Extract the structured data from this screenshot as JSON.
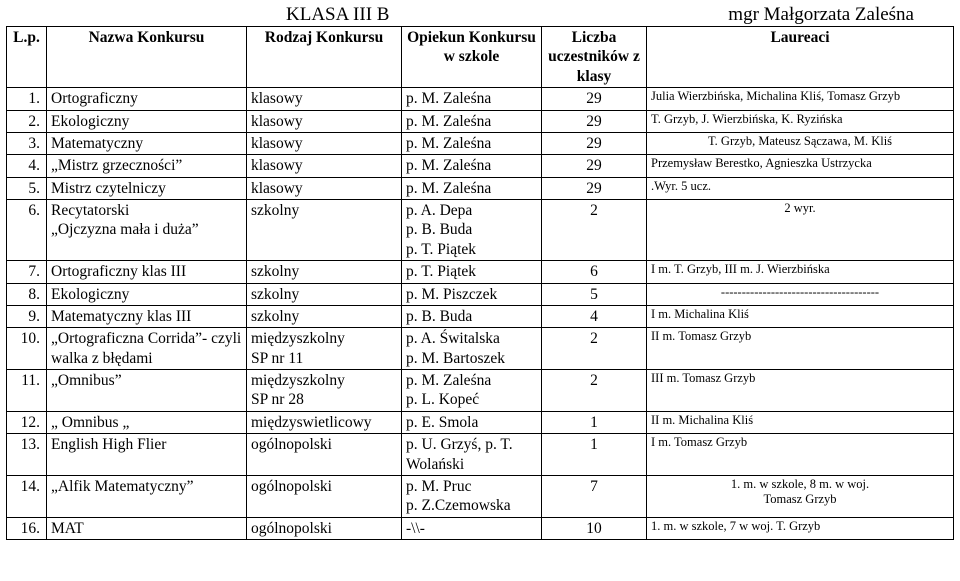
{
  "title_left": "KLASA III B",
  "title_right": "mgr Małgorzata Zaleśna",
  "headers": {
    "lp": "L.p.",
    "nazwa": "Nazwa Konkursu",
    "rodzaj": "Rodzaj Konkursu",
    "opiekun": "Opiekun Konkursu w szkole",
    "liczba": "Liczba uczestników z klasy",
    "laureaci": "Laureaci"
  },
  "rows": [
    {
      "lp": "1.",
      "nazwa": "Ortograficzny",
      "rodzaj": "klasowy",
      "opiekun": "p. M. Zaleśna",
      "liczba": "29",
      "laur": "Julia Wierzbińska, Michalina Kliś, Tomasz Grzyb",
      "laur_align": "left"
    },
    {
      "lp": "2.",
      "nazwa": "Ekologiczny",
      "rodzaj": "klasowy",
      "opiekun": "p. M. Zaleśna",
      "liczba": "29",
      "laur": "T. Grzyb, J. Wierzbińska, K. Ryzińska",
      "laur_align": "left"
    },
    {
      "lp": "3.",
      "nazwa": "Matematyczny",
      "rodzaj": "klasowy",
      "opiekun": "p. M. Zaleśna",
      "liczba": "29",
      "laur": "T. Grzyb, Mateusz Sączawa, M. Kliś",
      "laur_align": "center"
    },
    {
      "lp": "4.",
      "nazwa": "„Mistrz grzeczności”",
      "rodzaj": "klasowy",
      "opiekun": "p. M. Zaleśna",
      "liczba": "29",
      "laur": "Przemysław Berestko, Agnieszka Ustrzycka",
      "laur_align": "left"
    },
    {
      "lp": "5.",
      "nazwa": " Mistrz czytelniczy",
      "rodzaj": "klasowy",
      "opiekun": "p. M. Zaleśna",
      "liczba": "29",
      "laur": ".Wyr. 5 ucz.",
      "laur_align": "left"
    },
    {
      "lp": "6.",
      "nazwa": "Recytatorski\n „Ojczyzna mała i duża”",
      "rodzaj": "szkolny",
      "opiekun": "p. A. Depa\np. B. Buda\np. T. Piątek",
      "liczba": "2",
      "laur": " 2 wyr.",
      "laur_align": "center"
    },
    {
      "lp": "7.",
      "nazwa": "Ortograficzny klas III",
      "rodzaj": "szkolny",
      "opiekun": "p. T. Piątek",
      "liczba": "6",
      "laur": "I m. T. Grzyb, III m. J. Wierzbińska",
      "laur_align": "left"
    },
    {
      "lp": "8.",
      "nazwa": "Ekologiczny",
      "rodzaj": "szkolny",
      "opiekun": "p. M. Piszczek",
      "liczba": "5",
      "laur": "--------------------------------------",
      "laur_align": "center"
    },
    {
      "lp": "9.",
      "nazwa": "Matematyczny klas III",
      "rodzaj": "szkolny",
      "opiekun": "p. B. Buda",
      "liczba": "4",
      "laur": "I m. Michalina Kliś",
      "laur_align": "left"
    },
    {
      "lp": "10.",
      "nazwa": "„Ortograficzna Corrida”- czyli walka z błędami",
      "rodzaj": "międzyszkolny\nSP nr 11",
      "opiekun": "p. A. Świtalska\np. M. Bartoszek",
      "liczba": "2",
      "laur": "II m. Tomasz  Grzyb",
      "laur_align": "left"
    },
    {
      "lp": "11.",
      "nazwa": "„Omnibus”",
      "rodzaj": "międzyszkolny\nSP nr 28",
      "opiekun": "p. M. Zaleśna\np. L. Kopeć",
      "liczba": "2",
      "laur": "III m. Tomasz Grzyb",
      "laur_align": "left"
    },
    {
      "lp": "12.",
      "nazwa": "„ Omnibus „",
      "rodzaj": "międzyswietlicowy",
      "opiekun": "p. E. Smola",
      "liczba": "1",
      "laur": "II m. Michalina Kliś",
      "laur_align": "left"
    },
    {
      "lp": "13.",
      "nazwa": "English High Flier",
      "rodzaj": "ogólnopolski",
      "opiekun": "p. U. Grzyś, p. T. Wolański",
      "liczba": "1",
      "laur": "I m. Tomasz Grzyb",
      "laur_align": "left"
    },
    {
      "lp": "14.",
      "nazwa": "„Alfik Matematyczny”",
      "rodzaj": "ogólnopolski",
      "opiekun": "p. M. Pruc\np. Z.Czemowska",
      "liczba": "7",
      "laur": "1. m. w szkole,  8 m. w woj.\nTomasz Grzyb",
      "laur_align": "center"
    },
    {
      "lp": "16.",
      "nazwa": "MAT",
      "rodzaj": "ogólnopolski",
      "opiekun": "-\\\\-",
      "liczba": "10",
      "laur": "1. m. w szkole, 7 w woj. T. Grzyb",
      "laur_align": "left"
    }
  ]
}
